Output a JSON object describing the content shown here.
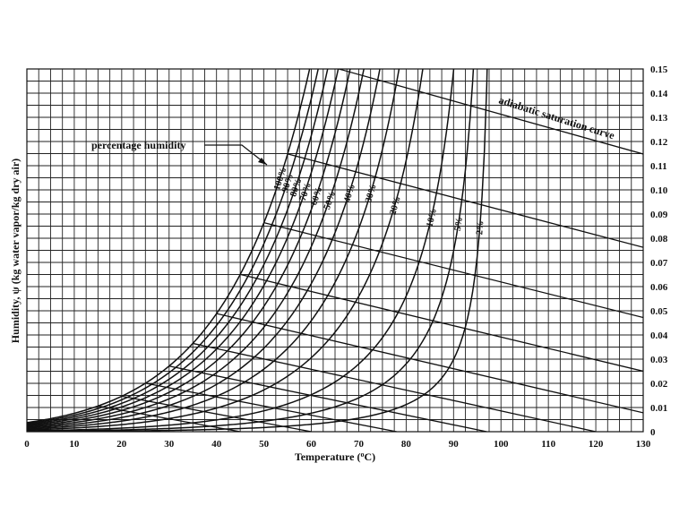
{
  "chart_data": {
    "type": "line",
    "title": "",
    "xlabel": "Temperature (°C)",
    "xlabel_parts": {
      "before": "Temperature (",
      "sup": "o",
      "after": "C)"
    },
    "ylabel": "Humidity, ψ (kg water vapor/kg dry air)",
    "xlim": [
      0,
      130
    ],
    "ylim": [
      0,
      0.15
    ],
    "x_ticks": [
      0,
      10,
      20,
      30,
      40,
      50,
      60,
      70,
      80,
      90,
      100,
      110,
      120,
      130
    ],
    "y_ticks": [
      "0",
      "0.01",
      "0.02",
      "0.03",
      "0.04",
      "0.05",
      "0.06",
      "0.07",
      "0.08",
      "0.09",
      "0.10",
      "0.11",
      "0.12",
      "0.13",
      "0.14",
      "0.15"
    ],
    "y_axis_side": "right",
    "grid": true,
    "grid_x_step": 2.5,
    "grid_y_step": 0.005,
    "series": [
      {
        "name": "100%",
        "rh": 1.0
      },
      {
        "name": "90%",
        "rh": 0.9
      },
      {
        "name": "80%",
        "rh": 0.8
      },
      {
        "name": "70%",
        "rh": 0.7
      },
      {
        "name": "60%",
        "rh": 0.6
      },
      {
        "name": "50%",
        "rh": 0.5
      },
      {
        "name": "40%",
        "rh": 0.4
      },
      {
        "name": "30%",
        "rh": 0.3
      },
      {
        "name": "20%",
        "rh": 0.2
      },
      {
        "name": "10%",
        "rh": 0.1
      },
      {
        "name": "5%",
        "rh": 0.05
      },
      {
        "name": "2%",
        "rh": 0.02
      }
    ],
    "adiabatic_lines": [
      {
        "tsat": 15,
        "tend": 45
      },
      {
        "tsat": 20,
        "tend": 60
      },
      {
        "tsat": 25,
        "tend": 78
      },
      {
        "tsat": 30,
        "tend": 97
      },
      {
        "tsat": 35,
        "tend": 120
      },
      {
        "tsat": 40,
        "tend": 130
      },
      {
        "tsat": 45,
        "tend": 130
      },
      {
        "tsat": 50,
        "tend": 130
      },
      {
        "tsat": 55,
        "tend": 130
      },
      {
        "tsat": 60,
        "tend": 130
      },
      {
        "tsat": 65,
        "tend": 130
      }
    ],
    "annotations": {
      "percentage_humidity": "percentage humidity",
      "adiabatic_saturation_curve": "adiabatic saturation curve"
    }
  }
}
